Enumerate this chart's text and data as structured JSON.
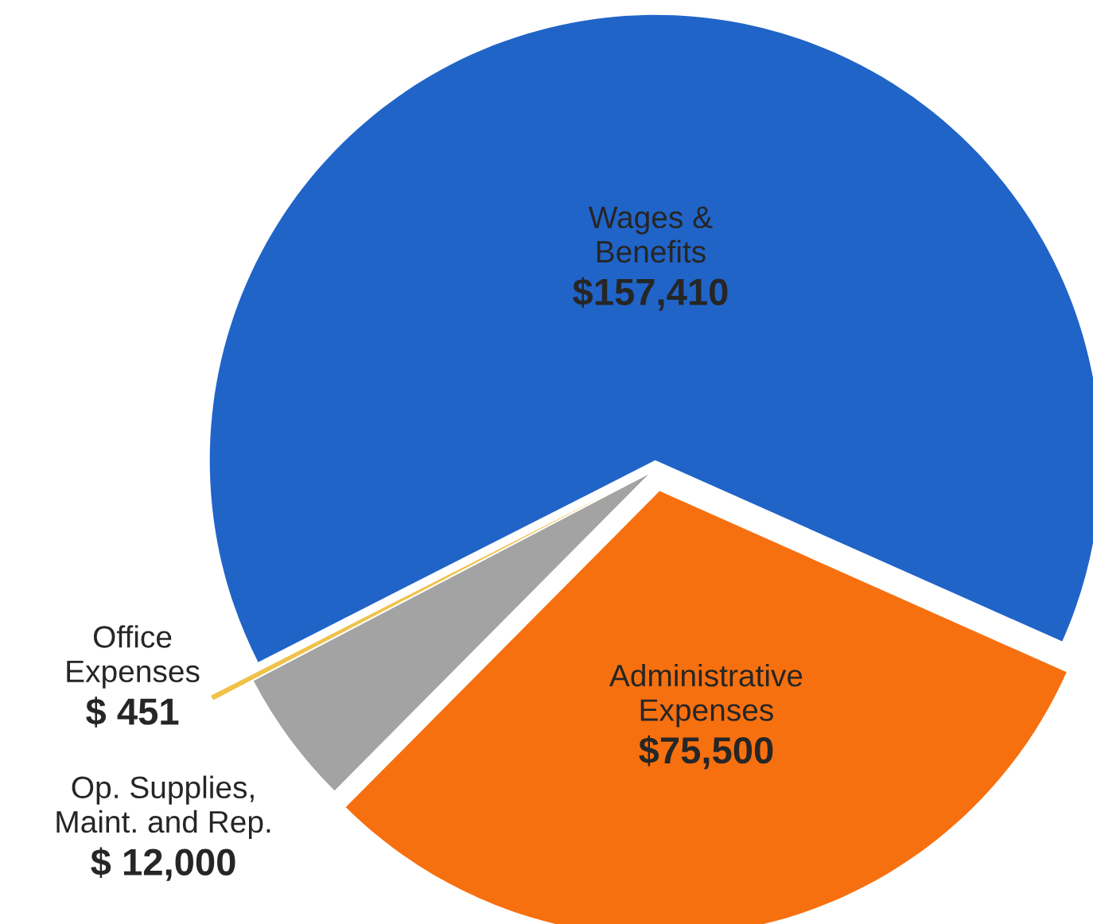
{
  "chart_data": {
    "type": "pie",
    "categories": [
      "Wages &\nBenefits",
      "Office\nExpenses",
      "Op. Supplies,\nMaint. and Rep.",
      "Administrative\nExpenses"
    ],
    "values": [
      157410,
      451,
      12000,
      75500
    ],
    "value_labels": [
      "$157,410",
      "$ 451",
      "$ 12,000",
      "$75,500"
    ],
    "colors": [
      "#2064c8",
      "#f0c24a",
      "#a3a3a3",
      "#f7700f"
    ]
  }
}
